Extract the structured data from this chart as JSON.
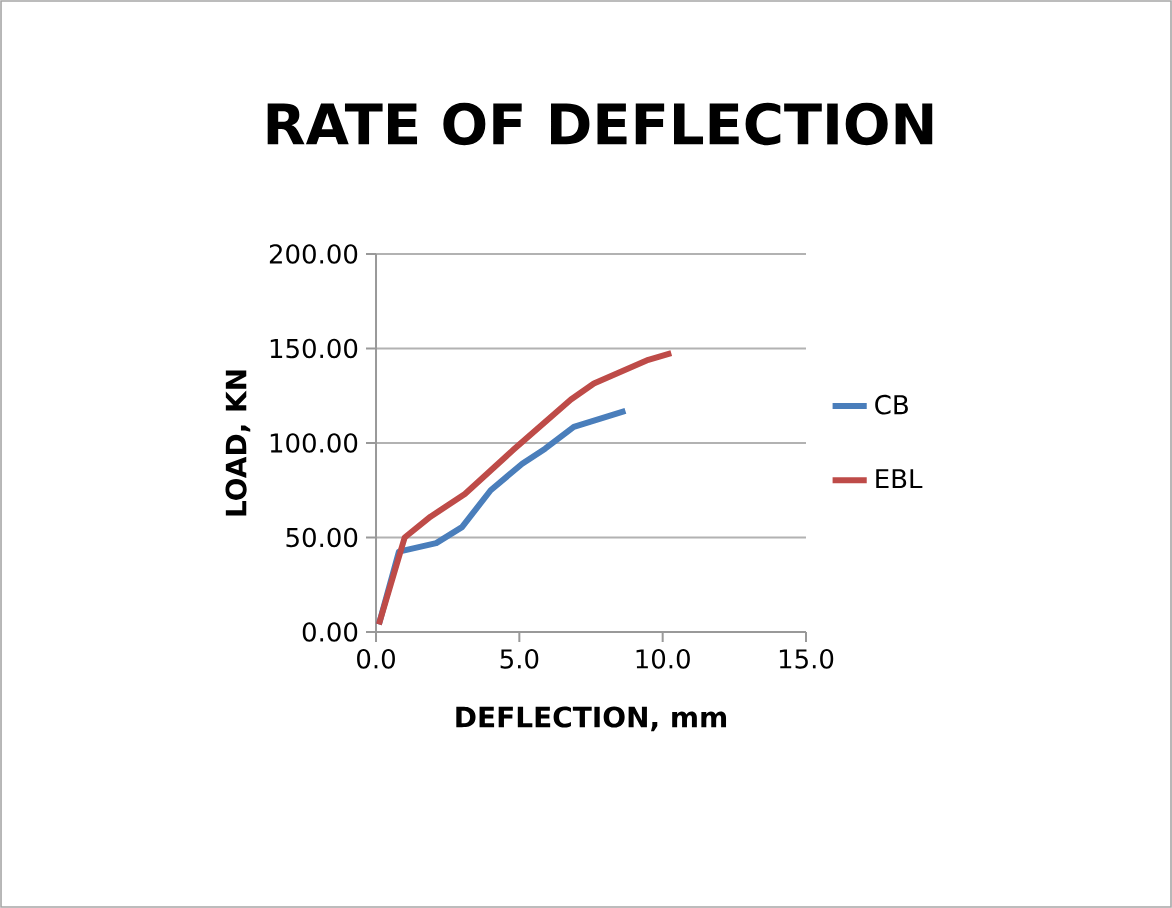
{
  "chart_data": {
    "type": "line",
    "title": "RATE OF DEFLECTION",
    "xlabel": "DEFLECTION, mm",
    "ylabel": "LOAD, KN",
    "xlim": [
      0,
      15
    ],
    "ylim": [
      0,
      200
    ],
    "xticks": [
      {
        "value": 0,
        "label": "0.0"
      },
      {
        "value": 5,
        "label": "5.0"
      },
      {
        "value": 10,
        "label": "10.0"
      },
      {
        "value": 15,
        "label": "15.0"
      }
    ],
    "yticks": [
      {
        "value": 0,
        "label": "0.00"
      },
      {
        "value": 50,
        "label": "50.00"
      },
      {
        "value": 100,
        "label": "100.00"
      },
      {
        "value": 150,
        "label": "150.00"
      },
      {
        "value": 200,
        "label": "200.00"
      }
    ],
    "grid": "y",
    "legend": "right",
    "marker": "none",
    "line_style": "solid",
    "series": [
      {
        "name": "CB",
        "color": "#4a7ebb",
        "x": [
          0.1,
          0.8,
          2.1,
          3.0,
          4.0,
          5.1,
          5.9,
          6.9,
          8.7
        ],
        "values": [
          4,
          42.5,
          47,
          55.5,
          75,
          89,
          97,
          108.5,
          117
        ]
      },
      {
        "name": "EBL",
        "color": "#be4b48",
        "x": [
          0.1,
          1.0,
          1.9,
          3.1,
          4.8,
          6.8,
          7.6,
          9.5,
          10.3
        ],
        "values": [
          4,
          50,
          61,
          73,
          96.5,
          123,
          131.5,
          144,
          147.5
        ]
      }
    ]
  }
}
